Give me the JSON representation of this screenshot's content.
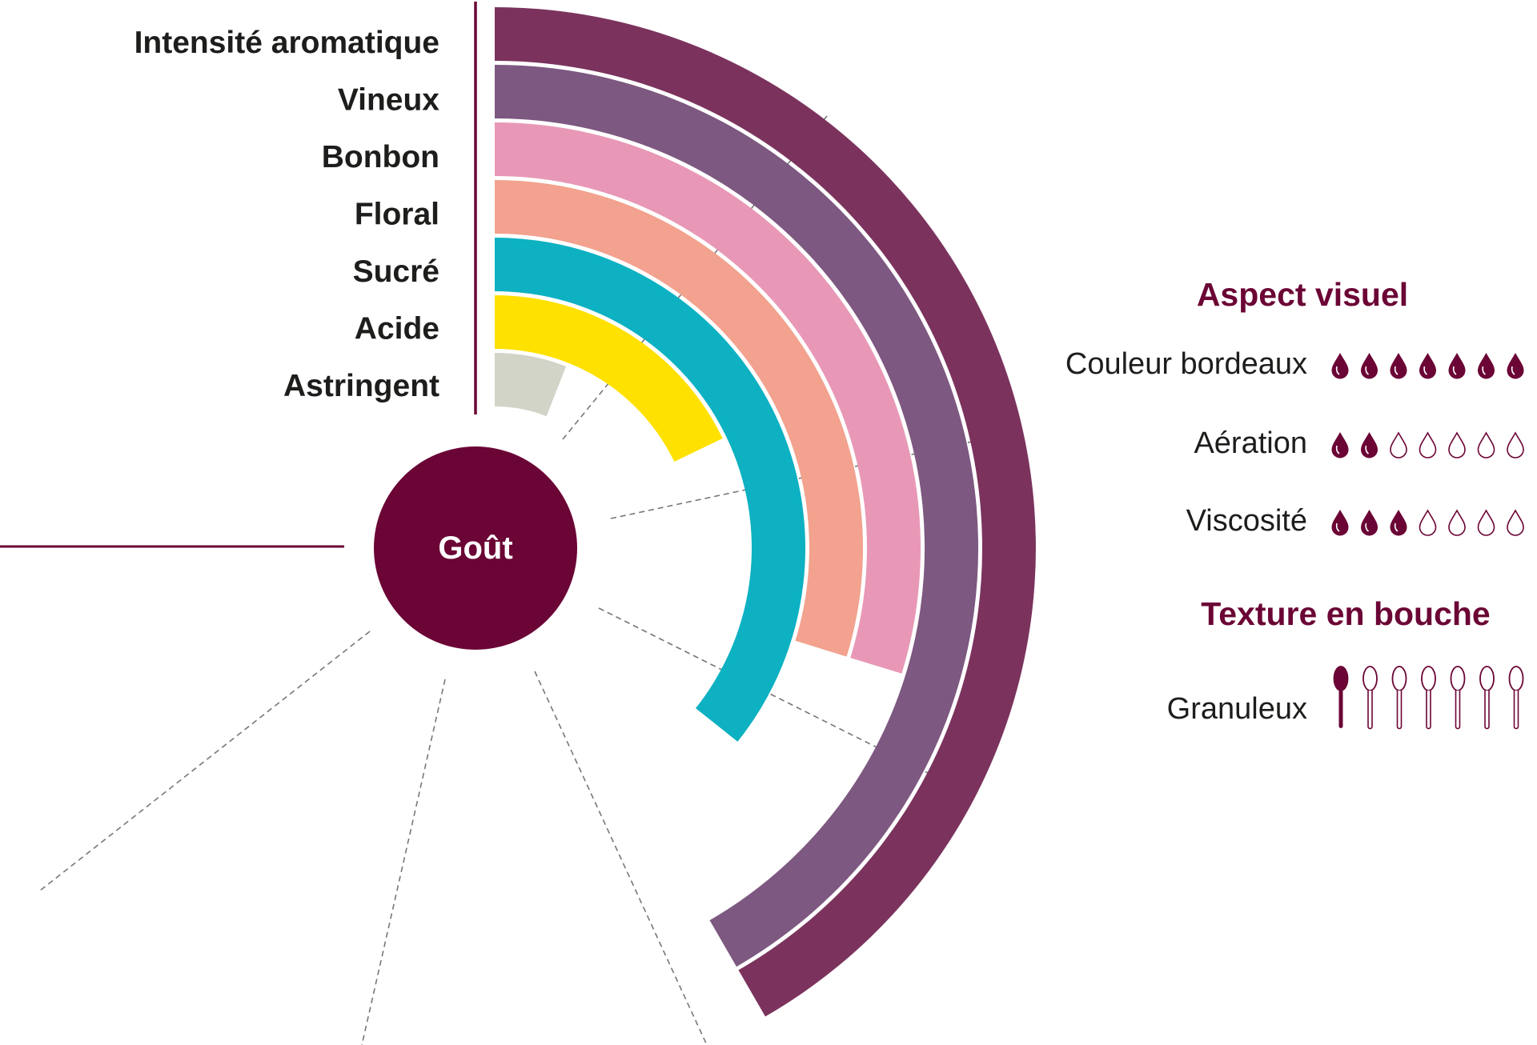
{
  "colors": {
    "burgundy": "#6b0535",
    "text": "#1d1d1b"
  },
  "center": {
    "label": "Goût",
    "color": "#6b0535"
  },
  "chart_data": {
    "type": "radial-bar",
    "max_level": 7,
    "series": [
      {
        "name": "Intensité aromatique",
        "value": 7,
        "color": "#7b335d"
      },
      {
        "name": "Vineux",
        "value": 7,
        "color": "#7d5880"
      },
      {
        "name": "Bonbon",
        "value": 5,
        "color": "#e898b6"
      },
      {
        "name": "Floral",
        "value": 5,
        "color": "#f2a28e"
      },
      {
        "name": "Sucré",
        "value": 6,
        "color": "#0db1c2"
      },
      {
        "name": "Acide",
        "value": 3,
        "color": "#ffe100"
      },
      {
        "name": "Astringent",
        "value": 1,
        "color": "#d3d4c8"
      }
    ]
  },
  "aspect_visuel": {
    "title": "Aspect visuel",
    "icon": "drop-icon",
    "max": 7,
    "items": [
      {
        "label": "Couleur bordeaux",
        "value": 7
      },
      {
        "label": "Aération",
        "value": 2
      },
      {
        "label": "Viscosité",
        "value": 3
      }
    ]
  },
  "texture": {
    "title": "Texture en bouche",
    "icon": "spoon-icon",
    "max": 7,
    "items": [
      {
        "label": "Granuleux",
        "value": 1
      }
    ]
  }
}
